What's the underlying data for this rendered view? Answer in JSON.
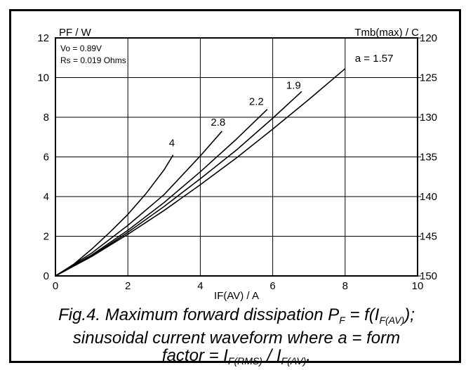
{
  "chart_data": {
    "type": "line",
    "title": "",
    "xlabel": "IF(AV) / A",
    "ylabel": "PF / W",
    "y2label": "Tmb(max) / C",
    "xlim": [
      0,
      10
    ],
    "ylim": [
      0,
      12
    ],
    "y2lim": [
      150,
      120
    ],
    "xticks": [
      "0",
      "2",
      "4",
      "6",
      "8",
      "10"
    ],
    "yticks": [
      "0",
      "2",
      "4",
      "6",
      "8",
      "10",
      "12"
    ],
    "y2ticks": [
      "150",
      "145",
      "140",
      "135",
      "130",
      "125",
      "120"
    ],
    "grid": true,
    "annotations": [
      "Vo = 0.89V",
      "Rs = 0.019 Ohms"
    ],
    "series": [
      {
        "name": "4",
        "label": "4",
        "x": [
          0,
          0.5,
          1.0,
          1.5,
          2.0,
          2.5,
          3.0,
          3.25
        ],
        "y": [
          0,
          0.58,
          1.35,
          2.2,
          3.1,
          4.15,
          5.35,
          6.1
        ]
      },
      {
        "name": "2.8",
        "label": "2.8",
        "x": [
          0,
          1.0,
          2.0,
          3.0,
          4.0,
          4.6
        ],
        "y": [
          0,
          1.15,
          2.55,
          4.1,
          6.05,
          7.3
        ]
      },
      {
        "name": "2.2",
        "label": "2.2",
        "x": [
          0,
          1.0,
          2.0,
          3.0,
          4.0,
          5.0,
          5.85
        ],
        "y": [
          0,
          1.05,
          2.3,
          3.7,
          5.25,
          6.9,
          8.4
        ]
      },
      {
        "name": "1.9",
        "label": "1.9",
        "x": [
          0,
          1.0,
          2.0,
          3.0,
          4.0,
          5.0,
          6.0,
          6.8
        ],
        "y": [
          0,
          1.0,
          2.2,
          3.5,
          4.9,
          6.35,
          7.95,
          9.3
        ]
      },
      {
        "name": "1.57",
        "label": "a = 1.57",
        "x": [
          0,
          1.0,
          2.0,
          3.0,
          4.0,
          5.0,
          6.0,
          7.0,
          8.0
        ],
        "y": [
          0,
          0.98,
          2.1,
          3.3,
          4.6,
          5.95,
          7.4,
          8.9,
          10.45
        ]
      }
    ]
  },
  "caption": {
    "line1_pre": "Fig.4.   Maximum forward dissipation P",
    "line1_sub1": "F",
    "line1_mid": " = f(I",
    "line1_sub2": "F(AV)",
    "line1_post": ");",
    "line2": "sinusoidal current waveform where a = form",
    "line3_pre": "factor = I",
    "line3_sub1": "F(RMS)",
    "line3_mid": " / I",
    "line3_sub2": "F(AV)",
    "line3_post": "."
  }
}
